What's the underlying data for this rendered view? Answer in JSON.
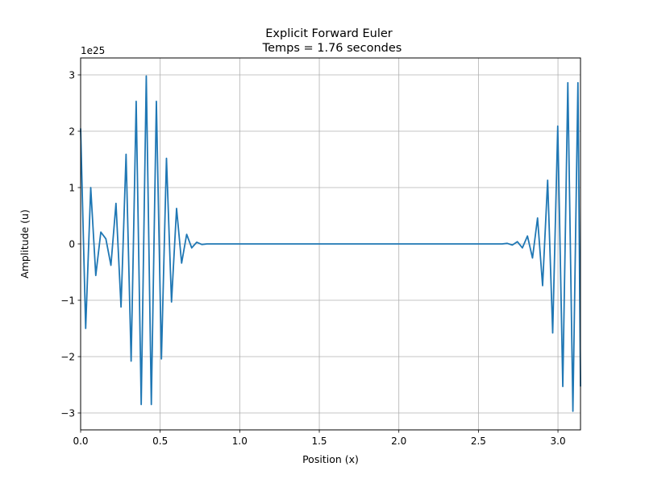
{
  "chart_data": {
    "type": "line",
    "title": "Explicit Forward Euler",
    "subtitle": "Temps = 1.76 secondes",
    "xlabel": "Position (x)",
    "ylabel": "Amplitude (u)",
    "y_offset_label": "1e25",
    "xlim": [
      0,
      3.1416
    ],
    "ylim": [
      -3.3,
      3.3
    ],
    "grid": true,
    "line_color": "#1f77b4",
    "x_ticks": [
      {
        "value": 0.0,
        "label": "0.0"
      },
      {
        "value": 0.5,
        "label": "0.5"
      },
      {
        "value": 1.0,
        "label": "1.0"
      },
      {
        "value": 1.5,
        "label": "1.5"
      },
      {
        "value": 2.0,
        "label": "2.0"
      },
      {
        "value": 2.5,
        "label": "2.5"
      },
      {
        "value": 3.0,
        "label": "3.0"
      }
    ],
    "y_ticks": [
      {
        "value": 3,
        "label": "3"
      },
      {
        "value": 2,
        "label": "2"
      },
      {
        "value": 1,
        "label": "1"
      },
      {
        "value": 0,
        "label": "0"
      },
      {
        "value": -1,
        "label": "−1"
      },
      {
        "value": -2,
        "label": "−2"
      },
      {
        "value": -3,
        "label": "−3"
      }
    ],
    "series": [
      {
        "x": [
          0.0,
          0.0317,
          0.0635,
          0.0952,
          0.127,
          0.1587,
          0.1904,
          0.2222,
          0.2539,
          0.2856,
          0.3174,
          0.3491,
          0.3808,
          0.4126,
          0.4443,
          0.476,
          0.5078,
          0.5395,
          0.5712,
          0.603,
          0.6347,
          0.6664,
          0.6982,
          0.7299,
          0.7616,
          0.7934,
          0.825,
          1.0,
          1.5,
          2.0,
          2.5,
          2.65,
          2.6812,
          2.713,
          2.7447,
          2.7764,
          2.8082,
          2.8399,
          2.8716,
          2.9034,
          2.9351,
          2.9668,
          2.9986,
          3.0303,
          3.062,
          3.0938,
          3.1255,
          3.1416
        ],
        "y": [
          2.05,
          -1.5,
          1.0,
          -0.56,
          0.21,
          0.09,
          -0.38,
          0.72,
          -1.12,
          1.59,
          -2.08,
          2.53,
          -2.85,
          2.98,
          -2.85,
          2.53,
          -2.04,
          1.52,
          -1.03,
          0.63,
          -0.34,
          0.17,
          -0.07,
          0.03,
          -0.01,
          0.0,
          0.0,
          0.0,
          0.0,
          0.0,
          0.0,
          0.0,
          0.01,
          -0.02,
          0.04,
          -0.07,
          0.14,
          -0.25,
          0.46,
          -0.74,
          1.13,
          -1.58,
          2.09,
          -2.53,
          2.86,
          -2.97,
          2.86,
          -2.53
        ]
      }
    ]
  }
}
